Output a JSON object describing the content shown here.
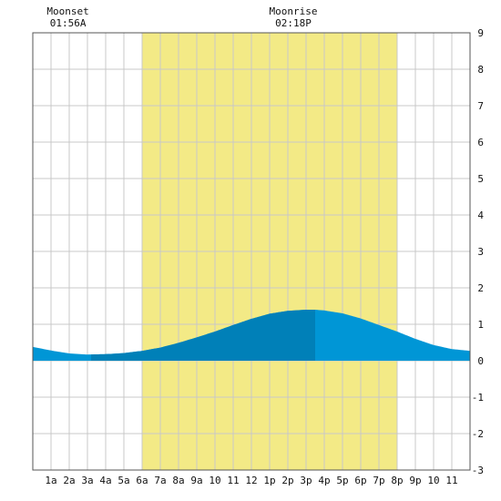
{
  "chart_data": {
    "type": "area",
    "title": "",
    "xlabel": "",
    "ylabel": "",
    "x_range": [
      0,
      24
    ],
    "ylim": [
      -3,
      9
    ],
    "grid": true,
    "x_tick_labels": [
      "1a",
      "2a",
      "3a",
      "4a",
      "5a",
      "6a",
      "7a",
      "8a",
      "9a",
      "10",
      "11",
      "12",
      "1p",
      "2p",
      "3p",
      "4p",
      "5p",
      "6p",
      "7p",
      "8p",
      "9p",
      "10",
      "11"
    ],
    "y_tick_labels": [
      "-3",
      "-2",
      "-1",
      "0",
      "1",
      "2",
      "3",
      "4",
      "5",
      "6",
      "7",
      "8",
      "9"
    ],
    "daylight": {
      "start_hour": 6.0,
      "end_hour": 20.0,
      "color": "#f3ea86"
    },
    "moon_events": [
      {
        "label": "Moonset",
        "time": "01:56A",
        "hour": 1.93
      },
      {
        "label": "Moonrise",
        "time": "02:18P",
        "hour": 14.3
      }
    ],
    "tide_curve": {
      "x": [
        0,
        1,
        2,
        3,
        4,
        5,
        6,
        7,
        8,
        9,
        10,
        11,
        12,
        13,
        14,
        15,
        15.5,
        16,
        17,
        18,
        19,
        20,
        21,
        22,
        23,
        24
      ],
      "y": [
        0.38,
        0.28,
        0.2,
        0.17,
        0.18,
        0.21,
        0.27,
        0.36,
        0.49,
        0.64,
        0.8,
        0.98,
        1.15,
        1.29,
        1.37,
        1.4,
        1.4,
        1.38,
        1.3,
        1.16,
        0.98,
        0.8,
        0.6,
        0.43,
        0.32,
        0.27
      ]
    },
    "colors": {
      "tide_light": "#0096d6",
      "tide_dark": "#0080b8",
      "grid": "#c8c8c8",
      "axis": "#555555"
    },
    "dark_window": {
      "start_hour": 3.2,
      "end_hour": 15.5
    }
  }
}
